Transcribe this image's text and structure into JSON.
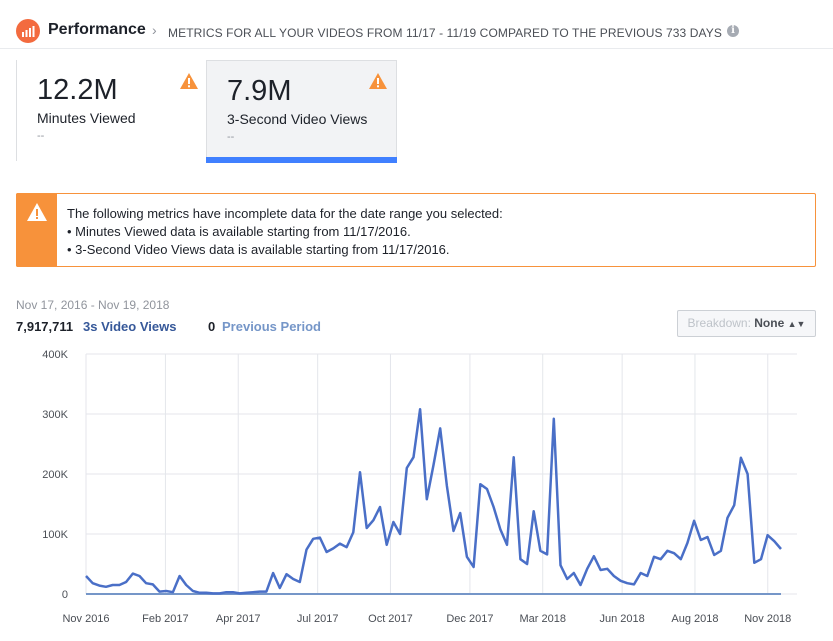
{
  "header": {
    "title": "Performance",
    "subtitle": "METRICS FOR ALL YOUR VIDEOS FROM 11/17 - 11/19 COMPARED TO THE PREVIOUS 733 DAYS",
    "info_icon": "info-icon",
    "app_icon": "bar-chart-icon"
  },
  "metrics": [
    {
      "value": "12.2M",
      "label": "Minutes Viewed",
      "sub": "--",
      "selected": false,
      "warning": true
    },
    {
      "value": "7.9M",
      "label": "3-Second Video Views",
      "sub": "--",
      "selected": true,
      "warning": true
    }
  ],
  "alert": {
    "icon": "warning-icon",
    "lines": [
      "The following metrics have incomplete data for the date range you selected:",
      "• Minutes Viewed data is available starting from 11/17/2016.",
      "• 3-Second Video Views data is available starting from 11/17/2016."
    ]
  },
  "summary": {
    "date_range": "Nov 17, 2016 - Nov 19, 2018",
    "total": "7,917,711",
    "series_label": "3s Video Views",
    "previous_total": "0",
    "previous_label": "Previous Period"
  },
  "breakdown": {
    "label": "Breakdown:",
    "value": "None",
    "icon": "caret-updown-icon"
  },
  "colors": {
    "accent": "#4080ff",
    "line": "#4a6fc7",
    "warning": "#f7923b",
    "link": "#365899"
  },
  "chart_data": {
    "type": "line",
    "title": "",
    "xlabel": "",
    "ylabel": "",
    "ylim": [
      0,
      400000
    ],
    "yticks": [
      0,
      100000,
      200000,
      300000,
      400000
    ],
    "ytick_labels": [
      "0",
      "100K",
      "200K",
      "300K",
      "400K"
    ],
    "xticks": [
      0,
      12,
      23,
      35,
      46,
      58,
      69,
      81,
      92,
      103
    ],
    "xtick_labels": [
      "Nov 2016",
      "Feb 2017",
      "Apr 2017",
      "Jul 2017",
      "Oct 2017",
      "Dec 2017",
      "Mar 2018",
      "Jun 2018",
      "Aug 2018",
      "Nov 2018"
    ],
    "x_max": 105,
    "grid": true,
    "series": [
      {
        "name": "3s Video Views",
        "color": "#4a6fc7",
        "values": [
          30000,
          18000,
          14000,
          12000,
          15000,
          15000,
          20000,
          34000,
          30000,
          18000,
          16000,
          4000,
          5000,
          3000,
          30000,
          15000,
          5000,
          2000,
          2000,
          1000,
          1000,
          3000,
          3000,
          1000,
          2000,
          3000,
          4000,
          4000,
          35000,
          10000,
          33000,
          25000,
          20000,
          74000,
          92000,
          94000,
          70000,
          76000,
          84000,
          78000,
          103000,
          203000,
          110000,
          123000,
          145000,
          82000,
          120000,
          100000,
          210000,
          228000,
          308000,
          158000,
          215000,
          276000,
          180000,
          105000,
          135000,
          62000,
          45000,
          183000,
          175000,
          145000,
          108000,
          82000,
          228000,
          58000,
          50000,
          138000,
          72000,
          66000,
          292000,
          48000,
          25000,
          35000,
          15000,
          42000,
          63000,
          40000,
          42000,
          30000,
          22000,
          18000,
          16000,
          35000,
          30000,
          62000,
          58000,
          72000,
          68000,
          58000,
          85000,
          122000,
          90000,
          95000,
          65000,
          72000,
          127000,
          148000,
          227000,
          200000,
          52000,
          58000,
          98000,
          88000,
          75000
        ]
      },
      {
        "name": "Previous Period",
        "color": "#7596c8",
        "values": [
          0,
          0
        ]
      }
    ]
  }
}
